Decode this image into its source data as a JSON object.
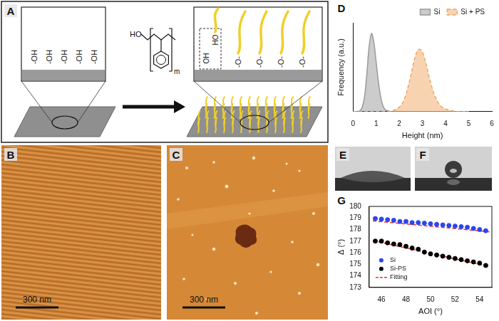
{
  "diagram": {
    "panel_label": "A",
    "substrate_groups": [
      "-OH",
      "-OH",
      "-OH",
      "-OH",
      "-OH"
    ],
    "molecule": {
      "end_group": "HO",
      "repeat_index": "m"
    },
    "grafted": {
      "unreacted_group": "OH",
      "free_chain_end": "HO",
      "bonded_groups": [
        "-O-",
        "-O-",
        "-O-",
        "-O-"
      ]
    }
  },
  "images": [
    {
      "panel_label": "B",
      "scale_bar": "300 nm"
    },
    {
      "panel_label": "C",
      "scale_bar": "300 nm"
    },
    {
      "panel_label": "E"
    },
    {
      "panel_label": "F"
    }
  ],
  "chart_data": [
    {
      "panel_label": "D",
      "type": "area",
      "x_label": "Height (nm)",
      "y_label": "Frequency (a.u.)",
      "x": [
        0,
        0.1,
        0.2,
        0.3,
        0.4,
        0.5,
        0.6,
        0.7,
        0.8,
        0.9,
        1.0,
        1.1,
        1.2,
        1.3,
        1.4,
        1.5,
        1.6,
        1.7,
        1.8,
        1.9,
        2.0,
        2.1,
        2.2,
        2.3,
        2.4,
        2.5,
        2.6,
        2.7,
        2.8,
        2.9,
        3.0,
        3.1,
        3.2,
        3.3,
        3.4,
        3.5,
        3.6,
        3.7,
        3.8,
        3.9,
        4.0,
        4.1,
        4.2,
        4.3,
        4.4,
        4.5,
        4.6,
        4.7,
        4.8,
        4.9,
        5.0
      ],
      "series": [
        {
          "name": "Si",
          "color": "#9a9a9a",
          "values": [
            0,
            0,
            0,
            0.01,
            0.05,
            0.17,
            0.43,
            0.74,
            0.88,
            0.78,
            0.56,
            0.33,
            0.16,
            0.06,
            0.02,
            0.01,
            0,
            0,
            0,
            0,
            0,
            0,
            0,
            0,
            0,
            0,
            0,
            0,
            0,
            0,
            0,
            0,
            0,
            0,
            0,
            0,
            0,
            0,
            0,
            0,
            0,
            0,
            0,
            0,
            0,
            0,
            0,
            0,
            0,
            0,
            0
          ]
        },
        {
          "name": "Si + PS",
          "color": "#f2a766",
          "line_style": "dashed",
          "values": [
            0,
            0,
            0,
            0,
            0,
            0,
            0,
            0,
            0,
            0,
            0,
            0,
            0,
            0,
            0,
            0,
            0,
            0.01,
            0.02,
            0.03,
            0.05,
            0.08,
            0.13,
            0.2,
            0.3,
            0.41,
            0.53,
            0.63,
            0.69,
            0.7,
            0.67,
            0.59,
            0.49,
            0.38,
            0.28,
            0.2,
            0.14,
            0.09,
            0.06,
            0.04,
            0.03,
            0.02,
            0.01,
            0.01,
            0,
            0,
            0,
            0,
            0,
            0,
            0
          ]
        }
      ],
      "xlim": [
        0,
        6
      ],
      "xticks": [
        0,
        1,
        2,
        3,
        4,
        5,
        6
      ],
      "ylim": [
        0,
        1
      ],
      "tick_labels": "x",
      "grid": false,
      "legend": "upper right"
    },
    {
      "panel_label": "G",
      "type": "scatter",
      "x_label": "AOI (°)",
      "y_label": "Δ (°)",
      "series": [
        {
          "name": "Si",
          "color": "#2b45f0",
          "marker": "circle",
          "x": [
            45.5,
            46,
            46.5,
            47,
            47.5,
            48,
            48.5,
            49,
            49.5,
            50,
            50.5,
            51,
            51.5,
            52,
            52.5,
            53,
            53.5,
            54,
            54.5
          ],
          "values": [
            178.95,
            178.9,
            178.85,
            178.8,
            178.7,
            178.7,
            178.6,
            178.6,
            178.55,
            178.5,
            178.45,
            178.4,
            178.35,
            178.3,
            178.25,
            178.2,
            178.1,
            178.0,
            177.9
          ]
        },
        {
          "name": "Si-PS",
          "color": "#000000",
          "marker": "circle",
          "x": [
            45.5,
            46,
            46.5,
            47,
            47.5,
            48,
            48.5,
            49,
            49.5,
            50,
            50.5,
            51,
            51.5,
            52,
            52.5,
            53,
            53.5,
            54,
            54.5
          ],
          "values": [
            177.0,
            177.0,
            176.85,
            176.75,
            176.7,
            176.55,
            176.4,
            176.3,
            176.05,
            175.9,
            175.8,
            175.7,
            175.6,
            175.5,
            175.4,
            175.3,
            175.2,
            175.1,
            174.9
          ]
        },
        {
          "name": "Fitting",
          "type": "line",
          "line_style": "dashed",
          "color": "#e8302a",
          "x": [
            45.3,
            54.8
          ],
          "values": [
            178.75,
            177.8
          ]
        },
        {
          "name": "Fitting",
          "type": "line",
          "line_style": "dashed",
          "color": "#e8302a",
          "x": [
            45.3,
            54.8
          ],
          "values": [
            177.05,
            174.8
          ]
        }
      ],
      "xlim": [
        45,
        55
      ],
      "xticks": [
        46,
        48,
        50,
        52,
        54
      ],
      "ylim": [
        173,
        180
      ],
      "yticks": [
        173,
        174,
        175,
        176,
        177,
        178,
        179,
        180
      ],
      "grid": false,
      "legend": "lower left"
    }
  ]
}
